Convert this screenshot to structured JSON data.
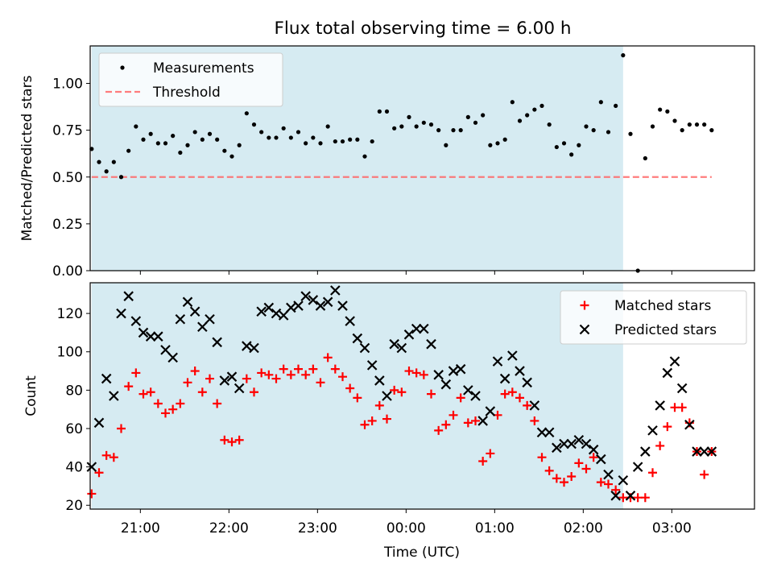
{
  "chart_data": [
    {
      "type": "scatter",
      "title": "Flux total observing time = 6.00 h",
      "ylabel": "Matched/Predicted stars",
      "xlabel": "",
      "ylim": [
        0,
        1.2
      ],
      "yticks": [
        "0.00",
        "0.25",
        "0.50",
        "0.75",
        "1.00"
      ],
      "yticks_values": [
        0,
        0.25,
        0.5,
        0.75,
        1.0
      ],
      "legend_placement": "top-left",
      "shaded_span": {
        "from": "20:27",
        "to": "02:27",
        "color": "#add8e6"
      },
      "threshold": {
        "name": "Threshold",
        "value": 0.5,
        "x_from": "20:27",
        "x_to": "03:27",
        "color": "#ff6666"
      },
      "series": [
        {
          "name": "Measurements",
          "color": "#000000",
          "x": [
            "20:27",
            "20:32",
            "20:37",
            "20:42",
            "20:47",
            "20:52",
            "20:57",
            "21:02",
            "21:07",
            "21:12",
            "21:17",
            "21:22",
            "21:27",
            "21:32",
            "21:37",
            "21:42",
            "21:47",
            "21:52",
            "21:57",
            "22:02",
            "22:07",
            "22:12",
            "22:17",
            "22:22",
            "22:27",
            "22:32",
            "22:37",
            "22:42",
            "22:47",
            "22:52",
            "22:57",
            "23:02",
            "23:07",
            "23:12",
            "23:17",
            "23:22",
            "23:27",
            "23:32",
            "23:37",
            "23:42",
            "23:47",
            "23:52",
            "23:57",
            "00:02",
            "00:07",
            "00:12",
            "00:17",
            "00:22",
            "00:27",
            "00:32",
            "00:37",
            "00:42",
            "00:47",
            "00:52",
            "00:57",
            "01:02",
            "01:07",
            "01:12",
            "01:17",
            "01:22",
            "01:27",
            "01:32",
            "01:37",
            "01:42",
            "01:47",
            "01:52",
            "01:57",
            "02:02",
            "02:07",
            "02:12",
            "02:17",
            "02:22",
            "02:27",
            "02:32",
            "02:37",
            "02:42",
            "02:47",
            "02:52",
            "02:57",
            "03:02",
            "03:07",
            "03:12",
            "03:17",
            "03:22",
            "03:27"
          ],
          "y": [
            0.65,
            0.58,
            0.53,
            0.58,
            0.5,
            0.64,
            0.77,
            0.7,
            0.73,
            0.68,
            0.68,
            0.72,
            0.63,
            0.67,
            0.74,
            0.7,
            0.73,
            0.7,
            0.64,
            0.61,
            0.67,
            0.84,
            0.78,
            0.74,
            0.71,
            0.71,
            0.76,
            0.71,
            0.74,
            0.68,
            0.71,
            0.68,
            0.77,
            0.69,
            0.69,
            0.7,
            0.7,
            0.61,
            0.69,
            0.85,
            0.85,
            0.76,
            0.77,
            0.82,
            0.77,
            0.79,
            0.78,
            0.75,
            0.67,
            0.75,
            0.75,
            0.82,
            0.79,
            0.83,
            0.67,
            0.68,
            0.7,
            0.9,
            0.8,
            0.83,
            0.86,
            0.88,
            0.78,
            0.66,
            0.68,
            0.62,
            0.67,
            0.77,
            0.75,
            0.9,
            0.74,
            0.88,
            1.15,
            0.73,
            0.0,
            0.6,
            0.77,
            0.86,
            0.85,
            0.8,
            0.75,
            0.78,
            0.78,
            0.78,
            0.75
          ]
        }
      ]
    },
    {
      "type": "scatter",
      "title": "",
      "ylabel": "Count",
      "xlabel": "Time (UTC)",
      "ylim": [
        18,
        136
      ],
      "yticks": [
        "20",
        "40",
        "60",
        "80",
        "100",
        "120"
      ],
      "yticks_values": [
        20,
        40,
        60,
        80,
        100,
        120
      ],
      "xticks": [
        "21:00",
        "22:00",
        "23:00",
        "00:00",
        "01:00",
        "02:00",
        "03:00"
      ],
      "legend_placement": "top-right",
      "shaded_span": {
        "from": "20:27",
        "to": "02:27",
        "color": "#add8e6"
      },
      "series": [
        {
          "name": "Matched stars",
          "color": "#ff0000",
          "marker": "+",
          "x": [
            "20:27",
            "20:32",
            "20:37",
            "20:42",
            "20:47",
            "20:52",
            "20:57",
            "21:02",
            "21:07",
            "21:12",
            "21:17",
            "21:22",
            "21:27",
            "21:32",
            "21:37",
            "21:42",
            "21:47",
            "21:52",
            "21:57",
            "22:02",
            "22:07",
            "22:12",
            "22:17",
            "22:22",
            "22:27",
            "22:32",
            "22:37",
            "22:42",
            "22:47",
            "22:52",
            "22:57",
            "23:02",
            "23:07",
            "23:12",
            "23:17",
            "23:22",
            "23:27",
            "23:32",
            "23:37",
            "23:42",
            "23:47",
            "23:52",
            "23:57",
            "00:02",
            "00:07",
            "00:12",
            "00:17",
            "00:22",
            "00:27",
            "00:32",
            "00:37",
            "00:42",
            "00:47",
            "00:52",
            "00:57",
            "01:02",
            "01:07",
            "01:12",
            "01:17",
            "01:22",
            "01:27",
            "01:32",
            "01:37",
            "01:42",
            "01:47",
            "01:52",
            "01:57",
            "02:02",
            "02:07",
            "02:12",
            "02:17",
            "02:22",
            "02:27",
            "02:32",
            "02:37",
            "02:42",
            "02:47",
            "02:52",
            "02:57",
            "03:02",
            "03:07",
            "03:12",
            "03:17",
            "03:22",
            "03:27"
          ],
          "y": [
            26,
            37,
            46,
            45,
            60,
            82,
            89,
            78,
            79,
            73,
            68,
            70,
            73,
            84,
            90,
            79,
            86,
            73,
            54,
            53,
            54,
            86,
            79,
            89,
            88,
            86,
            91,
            88,
            91,
            88,
            91,
            84,
            97,
            91,
            87,
            81,
            76,
            62,
            64,
            72,
            65,
            80,
            79,
            90,
            89,
            88,
            78,
            59,
            62,
            67,
            76,
            63,
            64,
            43,
            47,
            67,
            78,
            79,
            76,
            72,
            64,
            45,
            38,
            34,
            32,
            35,
            42,
            39,
            45,
            32,
            31,
            28,
            24,
            24,
            24,
            24,
            37,
            51,
            61,
            71,
            71,
            63,
            48,
            36,
            48
          ]
        },
        {
          "name": "Predicted stars",
          "color": "#000000",
          "marker": "x",
          "x": [
            "20:27",
            "20:32",
            "20:37",
            "20:42",
            "20:47",
            "20:52",
            "20:57",
            "21:02",
            "21:07",
            "21:12",
            "21:17",
            "21:22",
            "21:27",
            "21:32",
            "21:37",
            "21:42",
            "21:47",
            "21:52",
            "21:57",
            "22:02",
            "22:07",
            "22:12",
            "22:17",
            "22:22",
            "22:27",
            "22:32",
            "22:37",
            "22:42",
            "22:47",
            "22:52",
            "22:57",
            "23:02",
            "23:07",
            "23:12",
            "23:17",
            "23:22",
            "23:27",
            "23:32",
            "23:37",
            "23:42",
            "23:47",
            "23:52",
            "23:57",
            "00:02",
            "00:07",
            "00:12",
            "00:17",
            "00:22",
            "00:27",
            "00:32",
            "00:37",
            "00:42",
            "00:47",
            "00:52",
            "00:57",
            "01:02",
            "01:07",
            "01:12",
            "01:17",
            "01:22",
            "01:27",
            "01:32",
            "01:37",
            "01:42",
            "01:47",
            "01:52",
            "01:57",
            "02:02",
            "02:07",
            "02:12",
            "02:17",
            "02:22",
            "02:27",
            "02:32",
            "02:37",
            "02:42",
            "02:47",
            "02:52",
            "02:57",
            "03:02",
            "03:07",
            "03:12",
            "03:17",
            "03:22",
            "03:27"
          ],
          "y": [
            40,
            63,
            86,
            77,
            120,
            129,
            116,
            110,
            108,
            108,
            101,
            97,
            117,
            126,
            121,
            113,
            117,
            105,
            85,
            87,
            81,
            103,
            102,
            121,
            123,
            120,
            119,
            123,
            124,
            129,
            127,
            124,
            126,
            132,
            124,
            116,
            107,
            102,
            93,
            85,
            77,
            104,
            102,
            109,
            112,
            112,
            104,
            88,
            83,
            90,
            91,
            80,
            77,
            64,
            69,
            95,
            86,
            98,
            90,
            84,
            72,
            58,
            58,
            50,
            52,
            52,
            54,
            52,
            49,
            44,
            36,
            25,
            33,
            25,
            40,
            48,
            59,
            72,
            89,
            95,
            81,
            62,
            48,
            48,
            48
          ]
        }
      ]
    }
  ]
}
